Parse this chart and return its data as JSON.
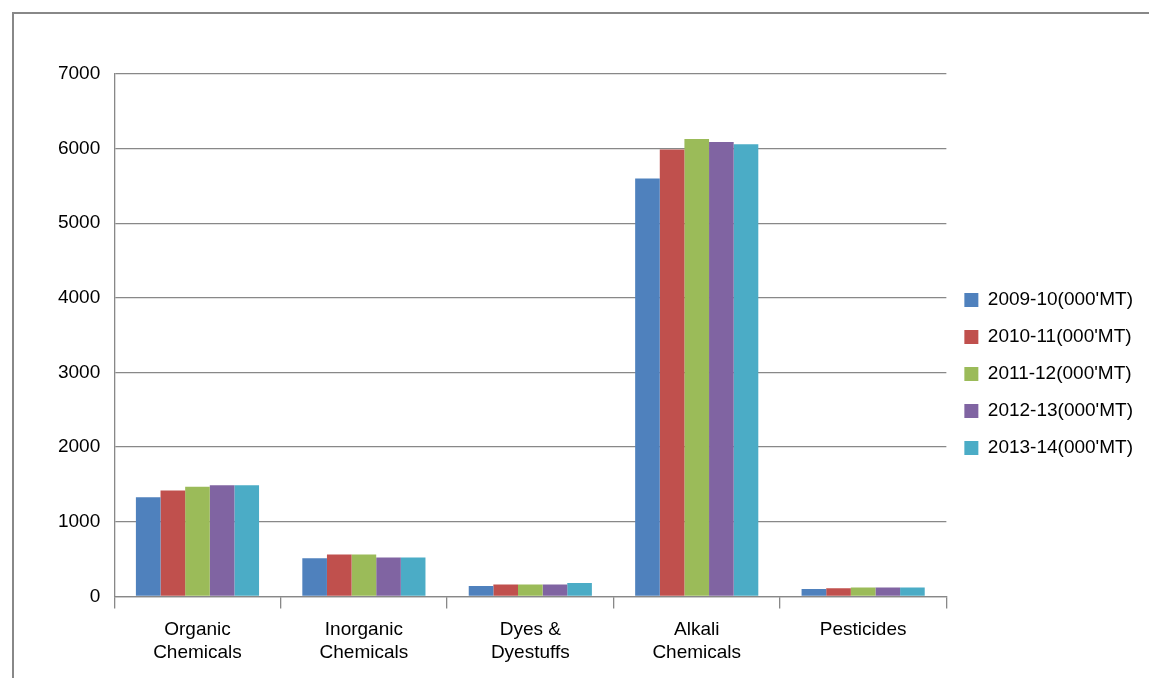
{
  "chart_data": {
    "type": "bar",
    "categories": [
      "Organic Chemicals",
      "Inorganic Chemicals",
      "Dyes & Dyestuffs",
      "Alkali Chemicals",
      "Pesticides"
    ],
    "series": [
      {
        "name": "2009-10(000'MT)",
        "color": "#4f81bd",
        "values": [
          1330,
          510,
          140,
          5600,
          100
        ]
      },
      {
        "name": "2010-11(000'MT)",
        "color": "#c0504d",
        "values": [
          1420,
          560,
          160,
          5990,
          110
        ]
      },
      {
        "name": "2011-12(000'MT)",
        "color": "#9bbb59",
        "values": [
          1470,
          560,
          160,
          6130,
          120
        ]
      },
      {
        "name": "2012-13(000'MT)",
        "color": "#8064a2",
        "values": [
          1490,
          520,
          160,
          6090,
          120
        ]
      },
      {
        "name": "2013-14(000'MT)",
        "color": "#4bacc6",
        "values": [
          1490,
          520,
          180,
          6060,
          120
        ]
      }
    ],
    "ylim": [
      0,
      7000
    ],
    "yticks": [
      0,
      1000,
      2000,
      3000,
      4000,
      5000,
      6000,
      7000
    ],
    "grid": "y",
    "legend": "right"
  }
}
